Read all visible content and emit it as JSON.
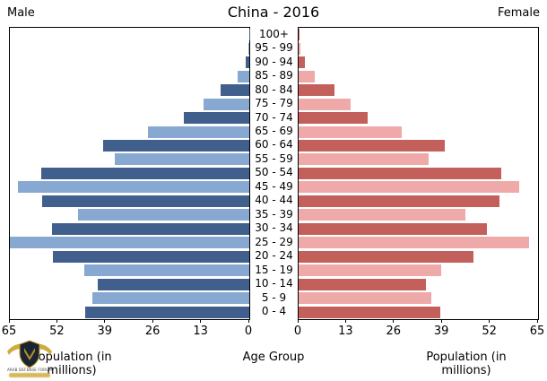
{
  "header": {
    "male_label": "Male",
    "title": "China - 2016",
    "female_label": "Female"
  },
  "axes": {
    "left_ticks": [
      "65",
      "52",
      "39",
      "26",
      "13",
      "0"
    ],
    "right_ticks": [
      "0",
      "13",
      "26",
      "39",
      "52",
      "65"
    ],
    "left_xlabel": "Population (in millions)",
    "center_xlabel": "Age Group",
    "right_xlabel": "Population (in millions)"
  },
  "watermark": {
    "line1": "ARAB DEFENSE FORUM"
  },
  "chart_data": {
    "type": "bar",
    "subtype": "population_pyramid",
    "title": "China - 2016",
    "unit": "millions of people",
    "age_groups": [
      "100+",
      "95 - 99",
      "90 - 94",
      "85 - 89",
      "80 - 84",
      "75 - 79",
      "70 - 74",
      "65 - 69",
      "60 - 64",
      "55 - 59",
      "50 - 54",
      "45 - 49",
      "40 - 44",
      "35 - 39",
      "30 - 34",
      "25 - 29",
      "20 - 24",
      "15 - 19",
      "10 - 14",
      "5 - 9",
      "0 - 4"
    ],
    "series": [
      {
        "name": "Male",
        "side": "left",
        "values": [
          0.1,
          0.3,
          1.0,
          3.1,
          7.7,
          12.5,
          17.8,
          27.6,
          39.6,
          36.6,
          56.5,
          62.7,
          56.2,
          46.5,
          53.6,
          65.2,
          53.3,
          44.8,
          41.2,
          42.6,
          44.5
        ]
      },
      {
        "name": "Female",
        "side": "right",
        "values": [
          0.1,
          0.5,
          1.7,
          4.4,
          9.7,
          14.0,
          18.7,
          27.9,
          39.6,
          35.2,
          55.1,
          60.0,
          54.5,
          45.2,
          51.2,
          62.6,
          47.5,
          38.7,
          34.6,
          36.1,
          38.4
        ]
      }
    ],
    "xlim": [
      0,
      65
    ],
    "x_tick_values": [
      0,
      13,
      26,
      39,
      52,
      65
    ],
    "xlabel": "Population (in millions)",
    "center_label": "Age Group",
    "grid": false,
    "legend": "none",
    "colors": {
      "male_dark": "#415F8C",
      "male_light": "#87A8D0",
      "female_dark": "#C4605C",
      "female_light": "#F0A9A9"
    }
  }
}
